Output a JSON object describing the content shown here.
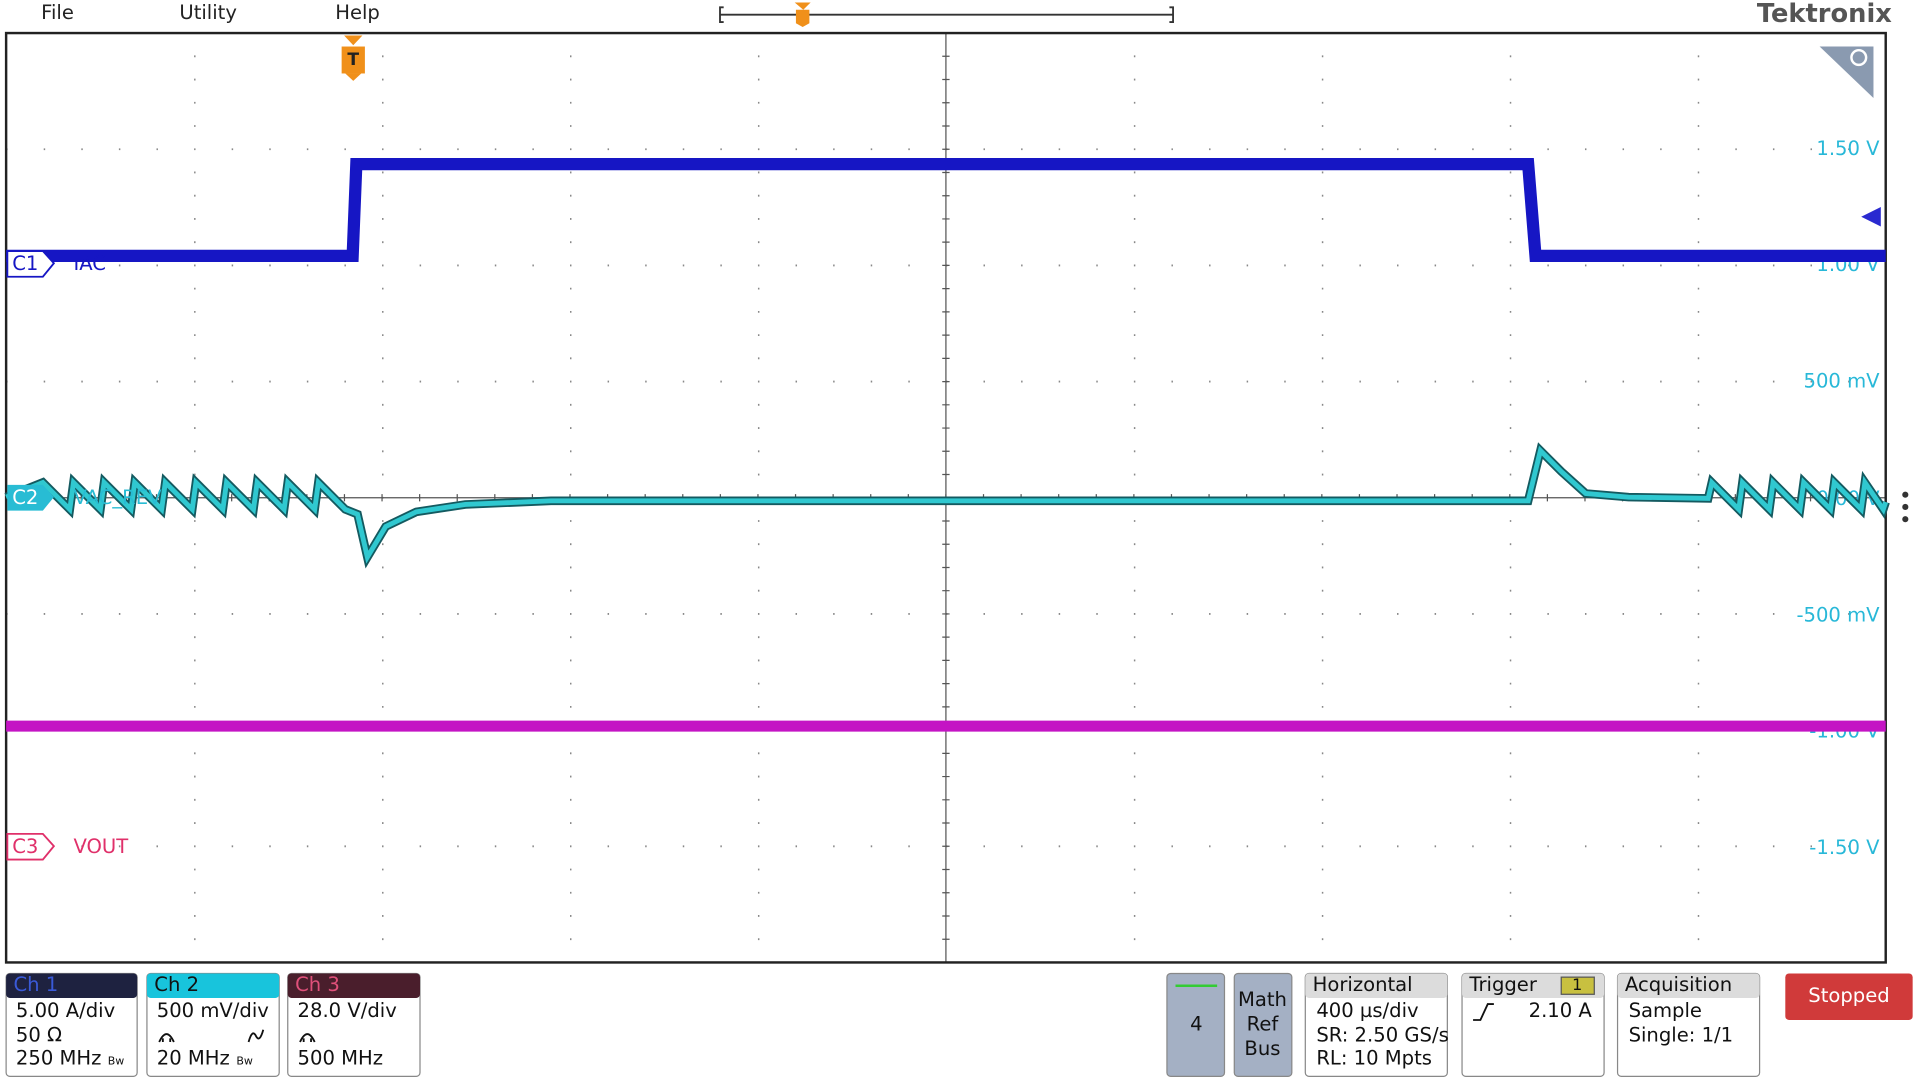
{
  "menu": [
    "File",
    "Utility",
    "Help"
  ],
  "brand": "Tektronix",
  "trigger_marker": "T",
  "scale_labels": [
    "1.50 V",
    "1.00 V",
    "500 mV",
    "0.00 V",
    "-500 mV",
    "-1.00 V",
    "-1.50 V"
  ],
  "channels": [
    {
      "id": "C1",
      "label": "IAC"
    },
    {
      "id": "C2",
      "label": "VAC_REV"
    },
    {
      "id": "C3",
      "label": "VOUT"
    }
  ],
  "badges": [
    {
      "title": "Ch 1",
      "lines": [
        "5.00 A/div",
        "50 Ω",
        "250 MHz"
      ],
      "bw": "Bw"
    },
    {
      "title": "Ch 2",
      "lines": [
        "500 mV/div",
        "20 MHz"
      ],
      "bw": "Bw"
    },
    {
      "title": "Ch 3",
      "lines": [
        "28.0 V/div",
        "500 MHz"
      ]
    }
  ],
  "add_waveform": "4",
  "math_ref_bus": [
    "Math",
    "Ref",
    "Bus"
  ],
  "horizontal": {
    "title": "Horizontal",
    "lines": [
      "400 µs/div",
      "SR: 2.50 GS/s",
      "RL: 10 Mpts"
    ]
  },
  "trigger": {
    "title": "Trigger",
    "source": "1",
    "level": "2.10 A"
  },
  "acquisition": {
    "title": "Acquisition",
    "lines": [
      "Sample",
      "Single: 1/1"
    ]
  },
  "status": "Stopped"
}
